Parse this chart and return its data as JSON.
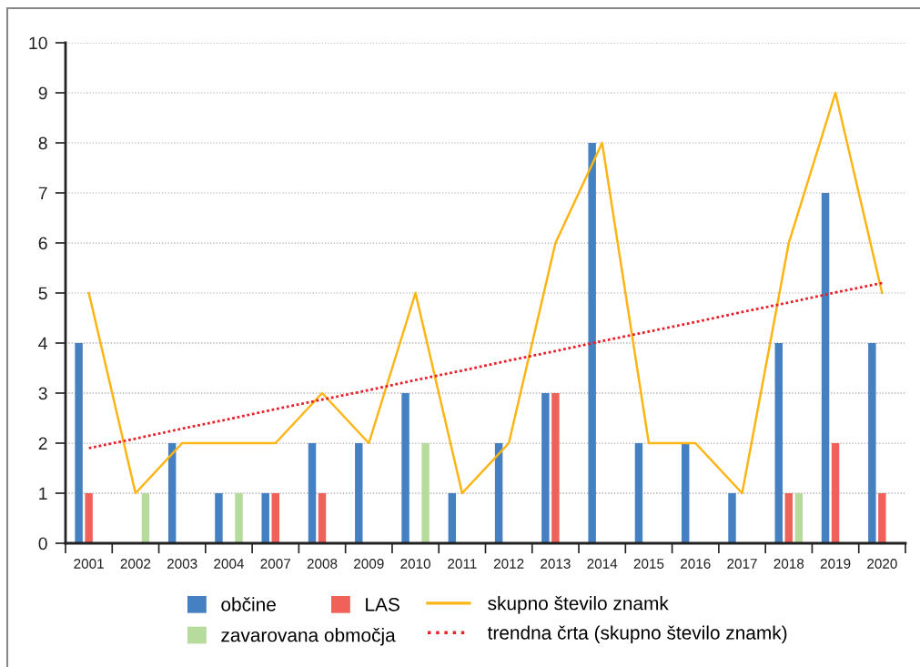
{
  "chart_data": {
    "type": "bar",
    "categories": [
      "2001",
      "2002",
      "2003",
      "2004",
      "2007",
      "2008",
      "2009",
      "2010",
      "2011",
      "2012",
      "2013",
      "2014",
      "2015",
      "2016",
      "2017",
      "2018",
      "2019",
      "2020"
    ],
    "series": [
      {
        "name": "občine",
        "color": "#4580c2",
        "values": [
          4,
          0,
          2,
          1,
          1,
          2,
          2,
          3,
          1,
          2,
          3,
          8,
          2,
          2,
          1,
          4,
          7,
          4
        ]
      },
      {
        "name": "LAS",
        "color": "#f0615a",
        "values": [
          1,
          0,
          0,
          0,
          1,
          1,
          0,
          0,
          0,
          0,
          3,
          0,
          0,
          0,
          0,
          1,
          2,
          1
        ]
      },
      {
        "name": "zavarovana območja",
        "color": "#b7da9d",
        "values": [
          0,
          1,
          0,
          1,
          0,
          0,
          0,
          2,
          0,
          0,
          0,
          0,
          0,
          0,
          0,
          1,
          0,
          0
        ]
      },
      {
        "name": "skupno število znamk",
        "type": "line",
        "color": "#fcb514",
        "line_style": "solid",
        "values": [
          5,
          1,
          2,
          2,
          2,
          3,
          2,
          5,
          1,
          2,
          6,
          8,
          2,
          2,
          1,
          6,
          9,
          5
        ]
      },
      {
        "name": "trendna črta (skupno število znamk)",
        "type": "line",
        "color": "#e8202a",
        "line_style": "dotted",
        "values": [
          1.9,
          2.09,
          2.29,
          2.48,
          2.68,
          2.87,
          3.06,
          3.26,
          3.45,
          3.65,
          3.84,
          4.04,
          4.23,
          4.42,
          4.62,
          4.81,
          5.01,
          5.2
        ]
      }
    ],
    "ylim": [
      0,
      10
    ],
    "yticks": [
      0,
      1,
      2,
      3,
      4,
      5,
      6,
      7,
      8,
      9,
      10
    ],
    "grid": "y",
    "legend": "bottom"
  }
}
